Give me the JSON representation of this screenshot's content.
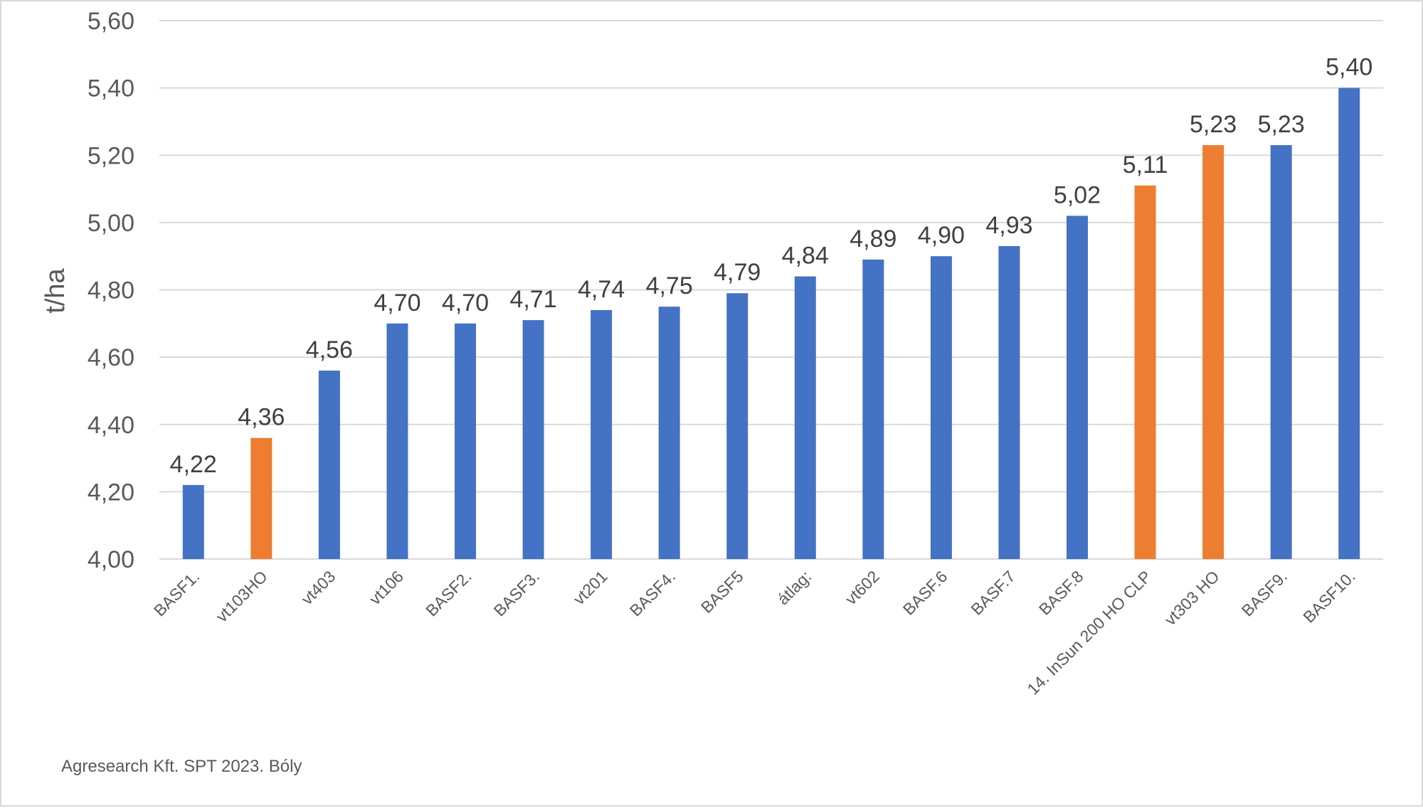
{
  "chart_data": {
    "type": "bar",
    "ylabel": "t/ha",
    "ylim": [
      4.0,
      5.6
    ],
    "yticks": [
      "4,00",
      "4,20",
      "4,40",
      "4,60",
      "4,80",
      "5,00",
      "5,20",
      "5,40",
      "5,60"
    ],
    "grid": true,
    "legend": "none",
    "categories": [
      "BASF1.",
      "vt103HO",
      "vt403",
      "vt106",
      "BASF2.",
      "BASF3.",
      "vt201",
      "BASF4.",
      "BASF5",
      "átlag:",
      "vt602",
      "BASF.6",
      "BASF.7",
      "BASF.8",
      "14. InSun 200 HO CLP",
      "vt303 HO",
      "BASF9.",
      "BASF10."
    ],
    "values": [
      4.22,
      4.36,
      4.56,
      4.7,
      4.7,
      4.71,
      4.74,
      4.75,
      4.79,
      4.84,
      4.89,
      4.9,
      4.93,
      5.02,
      5.11,
      5.23,
      5.23,
      5.4
    ],
    "data_labels": [
      "4,22",
      "4,36",
      "4,56",
      "4,70",
      "4,70",
      "4,71",
      "4,74",
      "4,75",
      "4,79",
      "4,84",
      "4,89",
      "4,90",
      "4,93",
      "5,02",
      "5,11",
      "5,23",
      "5,23",
      "5,40"
    ],
    "bar_colors": [
      "#4472c4",
      "#ed7d31",
      "#4472c4",
      "#4472c4",
      "#4472c4",
      "#4472c4",
      "#4472c4",
      "#4472c4",
      "#4472c4",
      "#4472c4",
      "#4472c4",
      "#4472c4",
      "#4472c4",
      "#4472c4",
      "#ed7d31",
      "#ed7d31",
      "#4472c4",
      "#4472c4"
    ],
    "gridline_color": "#d9d9d9"
  },
  "source_note": "Agresearch Kft. SPT 2023. Bóly"
}
